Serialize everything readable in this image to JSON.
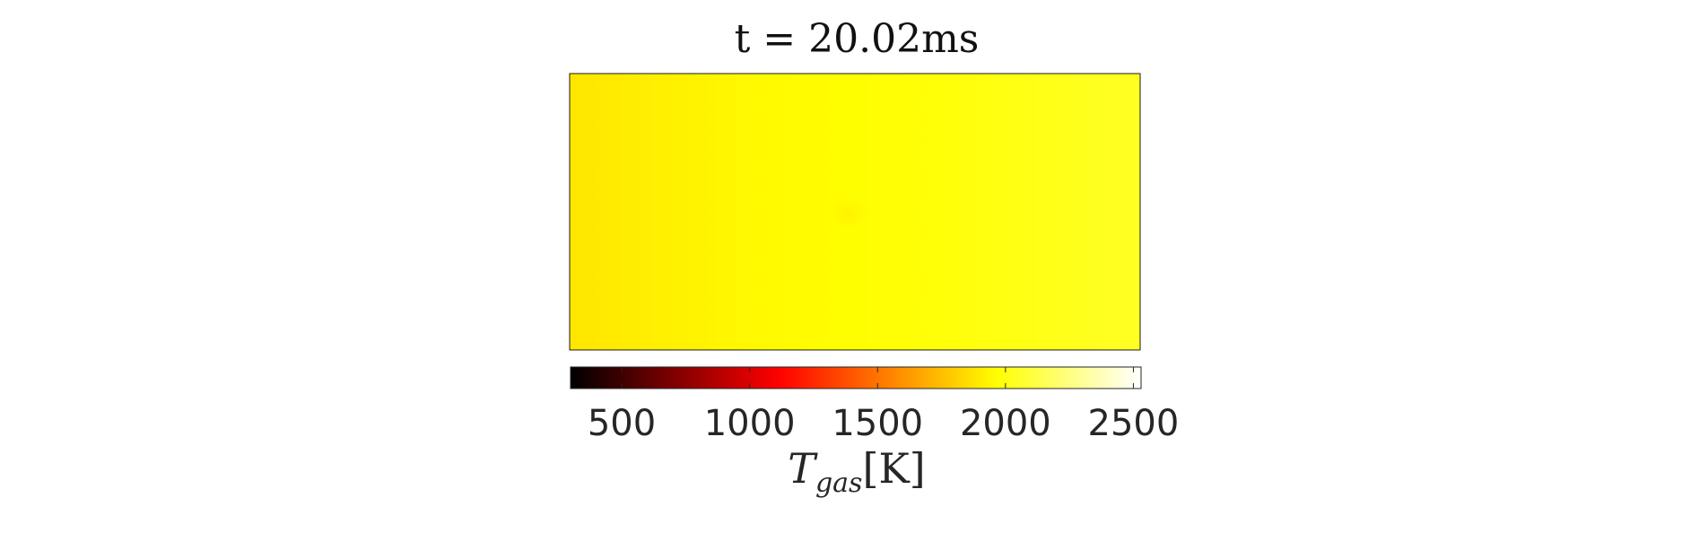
{
  "chart_data": {
    "type": "heatmap",
    "title": "t = 20.02ms",
    "quantity": "temperature",
    "colormap": "hot",
    "colorbar": {
      "orientation": "horizontal",
      "placement": "below",
      "range": [
        300,
        2530
      ],
      "ticks": [
        500,
        1000,
        1500,
        2000,
        2500
      ],
      "tick_labels": [
        "500",
        "1000",
        "1500",
        "2000",
        "2500"
      ],
      "label_main": "T",
      "label_sub": "gas",
      "label_unit": "[K]"
    },
    "field": {
      "description_values": "approximate temperature field sampled left-to-right",
      "columns_x_fraction": [
        0.0,
        0.1,
        0.3,
        0.5,
        0.7,
        0.9,
        1.0
      ],
      "temperature_by_column": [
        1880,
        1900,
        1940,
        1960,
        1990,
        2030,
        2040
      ],
      "hotspot": {
        "x_fraction": 0.49,
        "y_fraction": 0.5,
        "temperature": 1890
      }
    },
    "grid": false,
    "axes_visible": false
  }
}
